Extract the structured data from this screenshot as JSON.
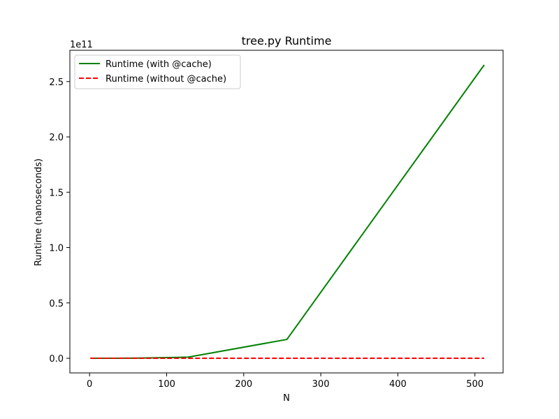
{
  "chart_data": {
    "type": "line",
    "title": "tree.py Runtime",
    "xlabel": "N",
    "ylabel": "Runtime (nanoseconds)",
    "y_offset_label": "1e11",
    "y_scale_factor": 100000000000,
    "xlim": [
      -25.55,
      536.55
    ],
    "ylim": [
      -13250000000,
      278250000000
    ],
    "x_ticks": [
      0,
      100,
      200,
      300,
      400,
      500
    ],
    "x_tick_labels": [
      "0",
      "100",
      "200",
      "300",
      "400",
      "500"
    ],
    "y_ticks": [
      0,
      50000000000,
      100000000000,
      150000000000,
      200000000000,
      250000000000
    ],
    "y_tick_labels": [
      "0.0",
      "0.5",
      "1.0",
      "1.5",
      "2.0",
      "2.5"
    ],
    "grid": false,
    "legend_position": "upper-left",
    "x": [
      1,
      2,
      4,
      8,
      16,
      32,
      64,
      128,
      256,
      512
    ],
    "series": [
      {
        "name": "Runtime (with @cache)",
        "color": "#008000",
        "style": "solid",
        "values": [
          0,
          0,
          0,
          0,
          1000000,
          10000000,
          120000000,
          1000000000,
          17000000000,
          265000000000
        ]
      },
      {
        "name": "Runtime (without @cache)",
        "color": "#ff0000",
        "style": "dashed",
        "values": [
          0,
          0,
          0,
          0,
          0,
          0,
          0,
          0,
          0,
          0
        ]
      }
    ]
  }
}
